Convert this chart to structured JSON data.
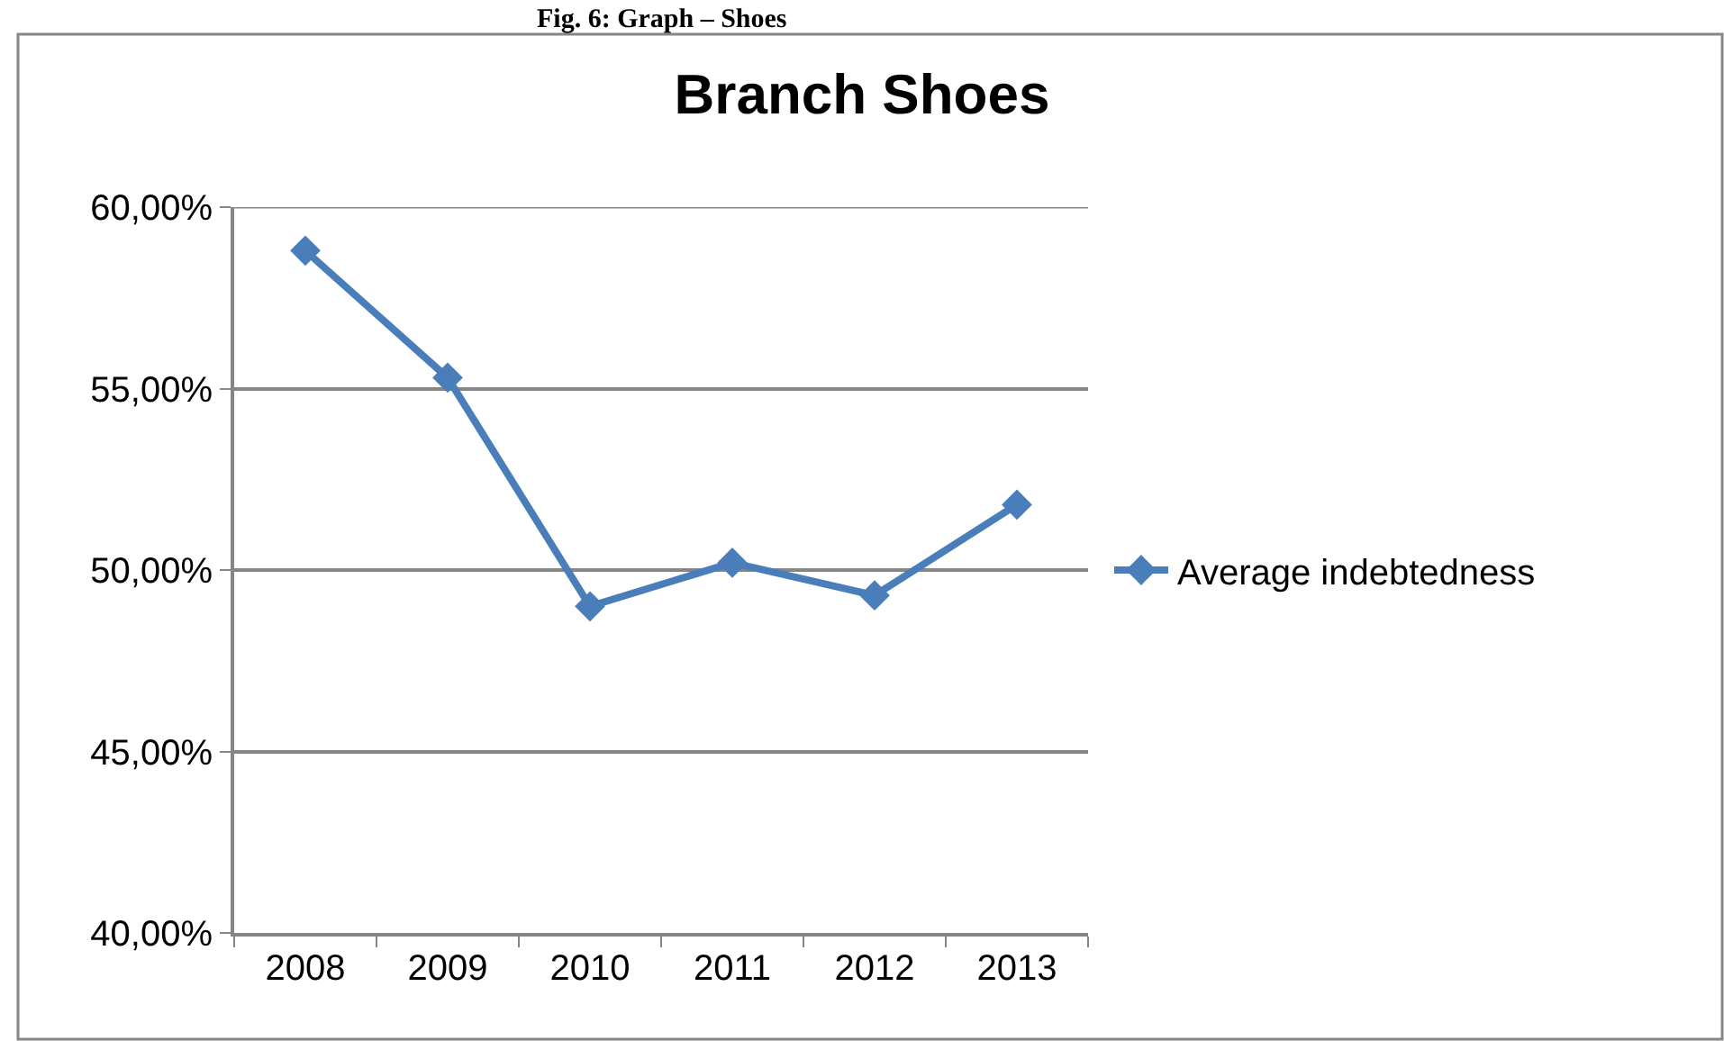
{
  "chart_data": {
    "type": "line",
    "title": "Branch Shoes",
    "annotations": [
      "Fig. 6: Graph – Shoes"
    ],
    "categories": [
      "2008",
      "2009",
      "2010",
      "2011",
      "2012",
      "2013"
    ],
    "series": [
      {
        "name": "Average indebtedness",
        "color": "#4a7ebb",
        "values": [
          58.8,
          55.3,
          49.0,
          50.2,
          49.3,
          51.8
        ]
      }
    ],
    "ylim": [
      40,
      60
    ],
    "yticks": [
      {
        "value": 40,
        "label": "40,00%"
      },
      {
        "value": 45,
        "label": "45,00%"
      },
      {
        "value": 50,
        "label": "50,00%"
      },
      {
        "value": 55,
        "label": "55,00%"
      },
      {
        "value": 60,
        "label": "60,00%"
      }
    ],
    "grid": "y",
    "legend": "right",
    "marker": "diamond",
    "line_style": "solid"
  }
}
